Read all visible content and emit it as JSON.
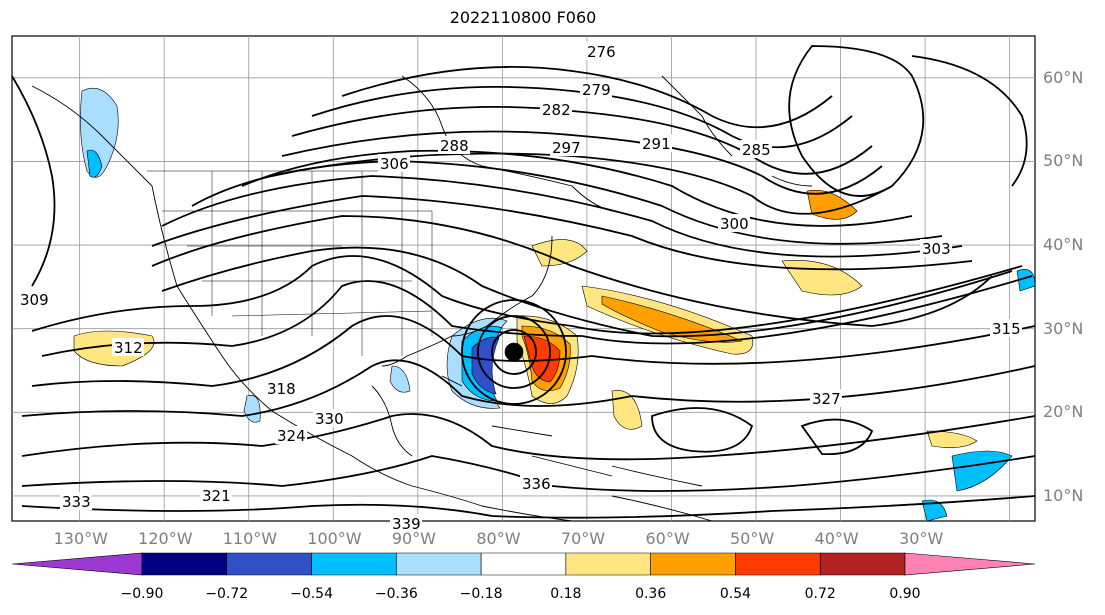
{
  "header": {
    "title": "2022110800 F060"
  },
  "map": {
    "projection": "PlateCarree",
    "lon_range": [
      -138,
      -17
    ],
    "lat_range": [
      7,
      65
    ],
    "storm_center_label": "",
    "contour_labels": [
      "276",
      "279",
      "282",
      "285",
      "288",
      "291",
      "297",
      "300",
      "303",
      "306",
      "309",
      "312",
      "315",
      "318",
      "321",
      "324",
      "327",
      "330",
      "333",
      "336",
      "339"
    ],
    "lon_ticks": [
      "130°W",
      "120°W",
      "110°W",
      "100°W",
      "90°W",
      "80°W",
      "70°W",
      "60°W",
      "50°W",
      "40°W",
      "30°W"
    ],
    "lat_ticks": [
      "60°N",
      "50°N",
      "40°N",
      "30°N",
      "20°N",
      "10°N"
    ]
  },
  "colorbar": {
    "ticks": [
      "−0.90",
      "−0.72",
      "−0.54",
      "−0.36",
      "−0.18",
      "0.18",
      "0.36",
      "0.54",
      "0.72",
      "0.90"
    ],
    "colors": [
      "#9c39d4",
      "#000080",
      "#3050c8",
      "#00bfff",
      "#aadeff",
      "#ffffff",
      "#ffe680",
      "#ffa000",
      "#ff3c00",
      "#b22222",
      "#ff82b4"
    ]
  }
}
